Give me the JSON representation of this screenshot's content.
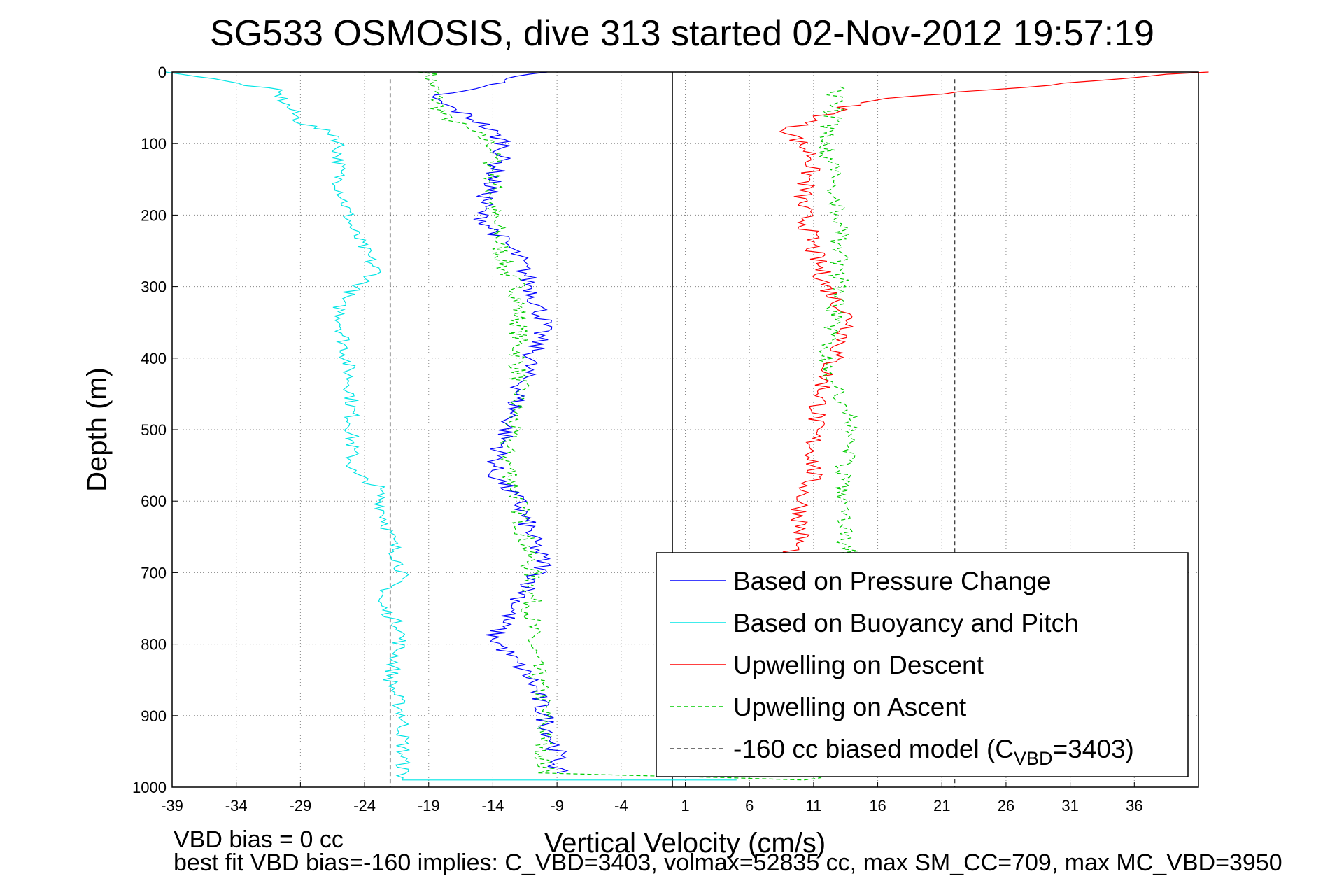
{
  "chart_data": {
    "type": "line",
    "title": "SG533 OSMOSIS, dive 313 started 02-Nov-2012 19:57:19",
    "xlabel": "Vertical Velocity (cm/s)",
    "ylabel": "Depth (m)",
    "xlim": [
      -39,
      41
    ],
    "ylim": [
      0,
      1000
    ],
    "y_reversed": true,
    "grid": true,
    "legend_position": "bottom-right",
    "x_ticks": [
      "-39",
      "-34",
      "-29",
      "-24",
      "-19",
      "-14",
      "-9",
      "-4",
      "1",
      "6",
      "11",
      "16",
      "21",
      "26",
      "31",
      "36"
    ],
    "y_ticks": [
      "0",
      "100",
      "200",
      "300",
      "400",
      "500",
      "600",
      "700",
      "800",
      "900",
      "1000"
    ],
    "footer_lines": [
      "VBD bias = 0 cc",
      "best fit VBD bias=-160 implies: C_VBD=3403, volmax=52835 cc, max SM_CC=709, max MC_VBD=3950"
    ],
    "series": [
      {
        "name": "Based on Pressure Change",
        "color": "#0000ff",
        "dash": "solid",
        "points": [
          [
            -10,
            0
          ],
          [
            -19,
            35
          ],
          [
            -15,
            70
          ],
          [
            -13,
            100
          ],
          [
            -14,
            150
          ],
          [
            -15,
            200
          ],
          [
            -12,
            260
          ],
          [
            -11,
            300
          ],
          [
            -10,
            350
          ],
          [
            -12,
            450
          ],
          [
            -14,
            560
          ],
          [
            -12,
            600
          ],
          [
            -11,
            650
          ],
          [
            -10,
            690
          ],
          [
            -12,
            740
          ],
          [
            -14,
            790
          ],
          [
            -11,
            850
          ],
          [
            -10,
            900
          ],
          [
            -9,
            950
          ],
          [
            -9,
            980
          ]
        ]
      },
      {
        "name": "Based on Buoyancy and Pitch",
        "color": "#00e5e5",
        "dash": "solid",
        "points": [
          [
            -39,
            0
          ],
          [
            -31,
            25
          ],
          [
            -29,
            70
          ],
          [
            -26,
            90
          ],
          [
            -26,
            150
          ],
          [
            -25,
            220
          ],
          [
            -23,
            280
          ],
          [
            -26,
            320
          ],
          [
            -25,
            450
          ],
          [
            -25,
            560
          ],
          [
            -23,
            580
          ],
          [
            -22,
            650
          ],
          [
            -21,
            700
          ],
          [
            -23,
            740
          ],
          [
            -21,
            780
          ],
          [
            -22,
            850
          ],
          [
            -21,
            900
          ],
          [
            -21,
            990
          ],
          [
            5,
            990
          ]
        ]
      },
      {
        "name": "Upwelling on Descent",
        "color": "#ff0000",
        "dash": "solid",
        "points": [
          [
            41,
            0
          ],
          [
            15,
            40
          ],
          [
            9,
            80
          ],
          [
            11,
            120
          ],
          [
            10,
            180
          ],
          [
            11,
            250
          ],
          [
            12,
            300
          ],
          [
            14,
            350
          ],
          [
            12,
            420
          ],
          [
            11,
            500
          ],
          [
            11,
            560
          ],
          [
            10,
            600
          ],
          [
            10,
            650
          ],
          [
            9,
            680
          ]
        ]
      },
      {
        "name": "Upwelling on Ascent",
        "color": "#00cc00",
        "dash": "dashed",
        "points": [
          [
            -19,
            0
          ],
          [
            -18,
            60
          ],
          [
            -14,
            100
          ],
          [
            -14,
            200
          ],
          [
            -13,
            280
          ],
          [
            -12,
            300
          ],
          [
            -12,
            350
          ],
          [
            -12,
            450
          ],
          [
            -13,
            530
          ],
          [
            -12,
            600
          ],
          [
            -11,
            700
          ],
          [
            -11,
            800
          ],
          [
            -10,
            900
          ],
          [
            -10,
            980
          ],
          [
            11,
            990
          ],
          [
            14,
            700
          ],
          [
            13,
            600
          ],
          [
            14,
            500
          ],
          [
            12,
            400
          ],
          [
            13,
            300
          ],
          [
            13,
            200
          ],
          [
            12,
            100
          ],
          [
            13,
            20
          ]
        ]
      },
      {
        "name": "-160 cc biased model (C_VBD=3403)",
        "legend_label_base": "-160 cc biased model (C",
        "legend_label_sub": "VBD",
        "legend_label_tail": "=3403)",
        "color": "#444444",
        "dash": "dashed",
        "points": [
          [
            -22,
            10
          ],
          [
            -22,
            1000
          ]
        ],
        "points_2": [
          [
            22,
            10
          ],
          [
            22,
            1000
          ]
        ]
      }
    ],
    "reference_lines": [
      {
        "x": 0,
        "style": "solid",
        "color": "#222222"
      }
    ]
  }
}
